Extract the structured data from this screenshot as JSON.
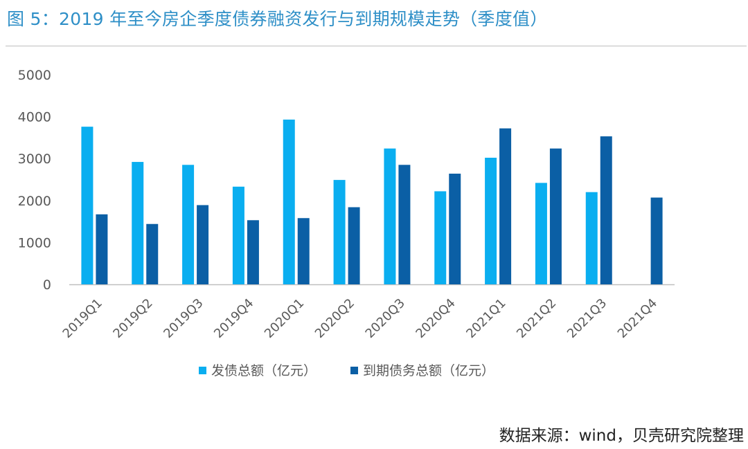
{
  "title": "图 5：2019 年至今房企季度债券融资发行与到期规模走势（季度值）",
  "source": "数据来源：wind，贝壳研究院整理",
  "colors": {
    "title": "#2e8fc7",
    "series_issue": "#0aaef0",
    "series_maturity": "#0b5fa5",
    "axis": "#bfbfbf",
    "tick_text": "#595959"
  },
  "chart_data": {
    "type": "bar",
    "title": "",
    "xlabel": "",
    "ylabel": "",
    "ylim": [
      0,
      5000
    ],
    "yticks": [
      0,
      1000,
      2000,
      3000,
      4000,
      5000
    ],
    "grid": false,
    "legend_position": "bottom",
    "categories": [
      "2019Q1",
      "2019Q2",
      "2019Q3",
      "2019Q4",
      "2020Q1",
      "2020Q2",
      "2020Q3",
      "2020Q4",
      "2021Q1",
      "2021Q2",
      "2021Q3",
      "2021Q4"
    ],
    "series": [
      {
        "name": "发债总额（亿元）",
        "color": "#0aaef0",
        "values": [
          3760,
          2920,
          2850,
          2330,
          3930,
          2490,
          3240,
          2220,
          3020,
          2420,
          2200,
          null
        ]
      },
      {
        "name": "到期债务总额（亿元）",
        "color": "#0b5fa5",
        "values": [
          1670,
          1440,
          1890,
          1530,
          1580,
          1840,
          2850,
          2640,
          3720,
          3240,
          3530,
          2070
        ]
      }
    ]
  }
}
